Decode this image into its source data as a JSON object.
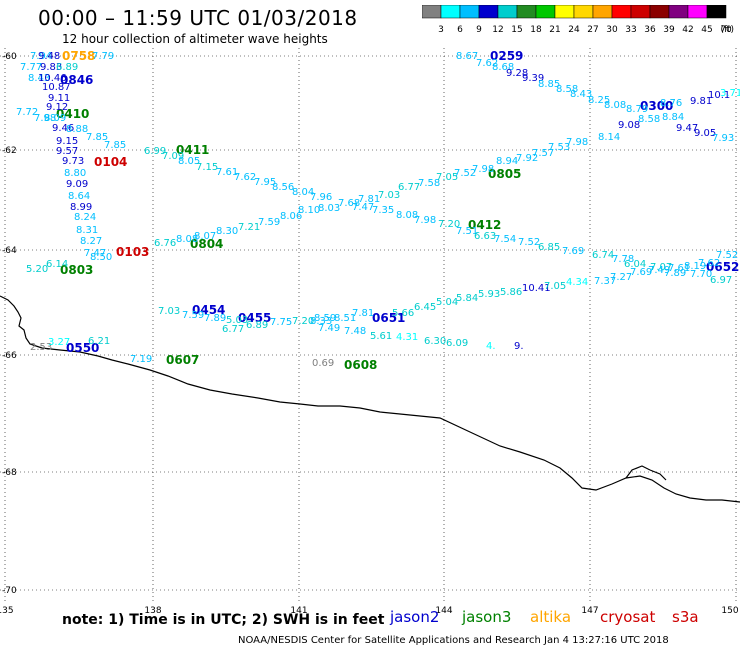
{
  "header": {
    "title": "00:00 – 11:59 UTC 01/03/2018",
    "subtitle": "12 hour collection of altimeter wave heights"
  },
  "legend": {
    "colors": [
      "#808080",
      "#00ffff",
      "#00bfff",
      "#0000cd",
      "#00cdcd",
      "#228b22",
      "#00c800",
      "#ffff00",
      "#ffd700",
      "#ffa500",
      "#ff0000",
      "#cd0000",
      "#8b0000",
      "#800080",
      "#ff00ff",
      "#000000"
    ],
    "labels": [
      "3",
      "6",
      "9",
      "12",
      "15",
      "18",
      "21",
      "24",
      "27",
      "30",
      "33",
      "36",
      "39",
      "42",
      "45",
      "70",
      "(ft)"
    ]
  },
  "axes": {
    "lon_ticks": [
      "135",
      "138",
      "141",
      "144",
      "147",
      "150"
    ],
    "lat_ticks": [
      "-60",
      "-62",
      "-64",
      "-66",
      "-68",
      "-70"
    ]
  },
  "satellites": [
    {
      "name": "jason2",
      "color": "#0000cd"
    },
    {
      "name": "jason3",
      "color": "#008000"
    },
    {
      "name": "altika",
      "color": "#ffa500"
    },
    {
      "name": "cryosat",
      "color": "#cd0000"
    },
    {
      "name": "s3a",
      "color": "#cd0000"
    }
  ],
  "footer": {
    "note": "note:  1) Time is in UTC;  2) SWH is in feet",
    "credit": "NOAA/NESDIS Center for Satellite Applications and Research   Jan  4 13:27:16 UTC 2018"
  },
  "track_labels": [
    {
      "t": "0758",
      "c": "#ffa500"
    },
    {
      "t": "0846",
      "c": "#0000cd"
    },
    {
      "t": "0410",
      "c": "#008000"
    },
    {
      "t": "0104",
      "c": "#cd0000"
    },
    {
      "t": "0803",
      "c": "#008000"
    },
    {
      "t": "0103",
      "c": "#cd0000"
    },
    {
      "t": "0804",
      "c": "#008000"
    },
    {
      "t": "0411",
      "c": "#008000"
    },
    {
      "t": "0454",
      "c": "#0000cd"
    },
    {
      "t": "0455",
      "c": "#0000cd"
    },
    {
      "t": "0550",
      "c": "#0000cd"
    },
    {
      "t": "0607",
      "c": "#008000"
    },
    {
      "t": "0608",
      "c": "#008000"
    },
    {
      "t": "0651",
      "c": "#0000cd"
    },
    {
      "t": "0412",
      "c": "#008000"
    },
    {
      "t": "0805",
      "c": "#008000"
    },
    {
      "t": "0259",
      "c": "#0000cd"
    },
    {
      "t": "0300",
      "c": "#0000cd"
    },
    {
      "t": "0652",
      "c": "#0000cd"
    }
  ],
  "wave_values": [
    {
      "t": "7.94",
      "c": "#00bfff"
    },
    {
      "t": "9.48",
      "c": "#0000cd"
    },
    {
      "t": "7.79",
      "c": "#00bfff"
    },
    {
      "t": "7.77",
      "c": "#00bfff"
    },
    {
      "t": "9.83",
      "c": "#0000cd"
    },
    {
      "t": "6.89",
      "c": "#00cdcd"
    },
    {
      "t": "8.43",
      "c": "#00bfff"
    },
    {
      "t": "10.46",
      "c": "#0000cd"
    },
    {
      "t": "10.87",
      "c": "#0000cd"
    },
    {
      "t": "9.11",
      "c": "#0000cd"
    },
    {
      "t": "7.72",
      "c": "#00bfff"
    },
    {
      "t": "9.12",
      "c": "#0000cd"
    },
    {
      "t": "7.98",
      "c": "#00bfff"
    },
    {
      "t": "8.09",
      "c": "#00bfff"
    },
    {
      "t": "9.46",
      "c": "#0000cd"
    },
    {
      "t": "8.88",
      "c": "#00bfff"
    },
    {
      "t": "7.85",
      "c": "#00bfff"
    },
    {
      "t": "9.15",
      "c": "#0000cd"
    },
    {
      "t": "7.85",
      "c": "#00bfff"
    },
    {
      "t": "9.57",
      "c": "#0000cd"
    },
    {
      "t": "6.99",
      "c": "#00cdcd"
    },
    {
      "t": "7.09",
      "c": "#00cdcd"
    },
    {
      "t": "9.73",
      "c": "#0000cd"
    },
    {
      "t": "8.05",
      "c": "#00bfff"
    },
    {
      "t": "7.15",
      "c": "#00cdcd"
    },
    {
      "t": "8.80",
      "c": "#00bfff"
    },
    {
      "t": "7.61",
      "c": "#00bfff"
    },
    {
      "t": "9.09",
      "c": "#0000cd"
    },
    {
      "t": "7.62",
      "c": "#00bfff"
    },
    {
      "t": "7.95",
      "c": "#00bfff"
    },
    {
      "t": "8.64",
      "c": "#00bfff"
    },
    {
      "t": "8.56",
      "c": "#00bfff"
    },
    {
      "t": "8.04",
      "c": "#00bfff"
    },
    {
      "t": "8.99",
      "c": "#0000cd"
    },
    {
      "t": "7.96",
      "c": "#00bfff"
    },
    {
      "t": "8.24",
      "c": "#00bfff"
    },
    {
      "t": "8.31",
      "c": "#00bfff"
    },
    {
      "t": "8.27",
      "c": "#00bfff"
    },
    {
      "t": "7.47",
      "c": "#00bfff"
    },
    {
      "t": "8.50",
      "c": "#00bfff"
    },
    {
      "t": "5.20",
      "c": "#00cdcd"
    },
    {
      "t": "6.14",
      "c": "#00cdcd"
    },
    {
      "t": "6.76",
      "c": "#00cdcd"
    },
    {
      "t": "8.08",
      "c": "#00bfff"
    },
    {
      "t": "8.07",
      "c": "#00bfff"
    },
    {
      "t": "8.30",
      "c": "#00bfff"
    },
    {
      "t": "7.21",
      "c": "#00cdcd"
    },
    {
      "t": "7.59",
      "c": "#00bfff"
    },
    {
      "t": "8.06",
      "c": "#00bfff"
    },
    {
      "t": "8.10",
      "c": "#00bfff"
    },
    {
      "t": "8.03",
      "c": "#00bfff"
    },
    {
      "t": "7.81",
      "c": "#00bfff"
    },
    {
      "t": "7.68",
      "c": "#00bfff"
    },
    {
      "t": "7.47",
      "c": "#00bfff"
    },
    {
      "t": "7.35",
      "c": "#00bfff"
    },
    {
      "t": "8.08",
      "c": "#00bfff"
    },
    {
      "t": "7.98",
      "c": "#00bfff"
    },
    {
      "t": "7.20",
      "c": "#00cdcd"
    },
    {
      "t": "7.51",
      "c": "#00bfff"
    },
    {
      "t": "6.63",
      "c": "#00cdcd"
    },
    {
      "t": "7.54",
      "c": "#00bfff"
    },
    {
      "t": "7.52",
      "c": "#00bfff"
    },
    {
      "t": "6.85",
      "c": "#00cdcd"
    },
    {
      "t": "7.69",
      "c": "#00bfff"
    },
    {
      "t": "6.74",
      "c": "#00cdcd"
    },
    {
      "t": "7.78",
      "c": "#00bfff"
    },
    {
      "t": "6.04",
      "c": "#00cdcd"
    },
    {
      "t": "7.07",
      "c": "#00cdcd"
    },
    {
      "t": "7.61",
      "c": "#00bfff"
    },
    {
      "t": "8.19",
      "c": "#00bfff"
    },
    {
      "t": "7.62",
      "c": "#00bfff"
    },
    {
      "t": "7.52",
      "c": "#00bfff"
    },
    {
      "t": "7.37",
      "c": "#00bfff"
    },
    {
      "t": "7.27",
      "c": "#00bfff"
    },
    {
      "t": "7.69",
      "c": "#00bfff"
    },
    {
      "t": "7.49",
      "c": "#00bfff"
    },
    {
      "t": "7.89",
      "c": "#00bfff"
    },
    {
      "t": "7.70",
      "c": "#00bfff"
    },
    {
      "t": "6.97",
      "c": "#00cdcd"
    },
    {
      "t": "6.77",
      "c": "#00cdcd"
    },
    {
      "t": "7.03",
      "c": "#00cdcd"
    },
    {
      "t": "7.58",
      "c": "#00bfff"
    },
    {
      "t": "7.05",
      "c": "#00cdcd"
    },
    {
      "t": "7.52",
      "c": "#00bfff"
    },
    {
      "t": "7.98",
      "c": "#00bfff"
    },
    {
      "t": "8.94",
      "c": "#00bfff"
    },
    {
      "t": "7.92",
      "c": "#00bfff"
    },
    {
      "t": "7.57",
      "c": "#00bfff"
    },
    {
      "t": "7.53",
      "c": "#00bfff"
    },
    {
      "t": "7.98",
      "c": "#00bfff"
    },
    {
      "t": "8.14",
      "c": "#00bfff"
    },
    {
      "t": "9.08",
      "c": "#0000cd"
    },
    {
      "t": "8.58",
      "c": "#00bfff"
    },
    {
      "t": "8.84",
      "c": "#00bfff"
    },
    {
      "t": "9.47",
      "c": "#0000cd"
    },
    {
      "t": "9.05",
      "c": "#0000cd"
    },
    {
      "t": "7.93",
      "c": "#00bfff"
    },
    {
      "t": "8.67",
      "c": "#00bfff"
    },
    {
      "t": "7.62",
      "c": "#00bfff"
    },
    {
      "t": "8.68",
      "c": "#00bfff"
    },
    {
      "t": "9.28",
      "c": "#0000cd"
    },
    {
      "t": "9.39",
      "c": "#0000cd"
    },
    {
      "t": "8.85",
      "c": "#00bfff"
    },
    {
      "t": "8.58",
      "c": "#00bfff"
    },
    {
      "t": "8.43",
      "c": "#00bfff"
    },
    {
      "t": "8.25",
      "c": "#00bfff"
    },
    {
      "t": "8.08",
      "c": "#00bfff"
    },
    {
      "t": "8.79",
      "c": "#00bfff"
    },
    {
      "t": "8.76",
      "c": "#00bfff"
    },
    {
      "t": "9.81",
      "c": "#0000cd"
    },
    {
      "t": "10.1",
      "c": "#0000cd"
    },
    {
      "t": "3.71",
      "c": "#00ffff"
    },
    {
      "t": "7.03",
      "c": "#00cdcd"
    },
    {
      "t": "7.59",
      "c": "#00bfff"
    },
    {
      "t": "7.89",
      "c": "#00bfff"
    },
    {
      "t": "5.03",
      "c": "#00cdcd"
    },
    {
      "t": "6.77",
      "c": "#00cdcd"
    },
    {
      "t": "6.89",
      "c": "#00cdcd"
    },
    {
      "t": "7.75",
      "c": "#00bfff"
    },
    {
      "t": "7.20",
      "c": "#00cdcd"
    },
    {
      "t": "8.33",
      "c": "#00bfff"
    },
    {
      "t": "8.59",
      "c": "#00bfff"
    },
    {
      "t": "8.51",
      "c": "#00bfff"
    },
    {
      "t": "7.81",
      "c": "#00bfff"
    },
    {
      "t": "7.49",
      "c": "#00bfff"
    },
    {
      "t": "7.48",
      "c": "#00bfff"
    },
    {
      "t": "5.61",
      "c": "#00cdcd"
    },
    {
      "t": "4.31",
      "c": "#00ffff"
    },
    {
      "t": "6.30",
      "c": "#00cdcd"
    },
    {
      "t": "6.09",
      "c": "#00cdcd"
    },
    {
      "t": "5.66",
      "c": "#00cdcd"
    },
    {
      "t": "6.45",
      "c": "#00cdcd"
    },
    {
      "t": "5.04",
      "c": "#00cdcd"
    },
    {
      "t": "5.84",
      "c": "#00cdcd"
    },
    {
      "t": "5.93",
      "c": "#00cdcd"
    },
    {
      "t": "5.86",
      "c": "#00cdcd"
    },
    {
      "t": "10.41",
      "c": "#0000cd"
    },
    {
      "t": "7.05",
      "c": "#00cdcd"
    },
    {
      "t": "4.34",
      "c": "#00ffff"
    },
    {
      "t": "2.53",
      "c": "#808080"
    },
    {
      "t": "3.27",
      "c": "#00ffff"
    },
    {
      "t": "6.21",
      "c": "#00cdcd"
    },
    {
      "t": "7.19",
      "c": "#00bfff"
    },
    {
      "t": "0.69",
      "c": "#808080"
    },
    {
      "t": "4.",
      "c": "#00ffff"
    },
    {
      "t": "9.",
      "c": "#0000cd"
    }
  ]
}
